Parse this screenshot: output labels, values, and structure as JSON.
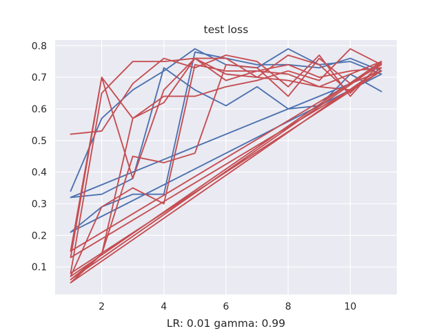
{
  "chart_data": {
    "type": "line",
    "title": "test loss",
    "xlabel": "LR: 0.01 gamma: 0.99",
    "ylabel": "",
    "xlim": [
      0.5,
      11.5
    ],
    "ylim": [
      0.013,
      0.818
    ],
    "xticks": [
      2,
      4,
      6,
      8,
      10
    ],
    "yticks": [
      0.1,
      0.2,
      0.3,
      0.4,
      0.5,
      0.6,
      0.7,
      0.8
    ],
    "grid": true,
    "background": "#eaeaf2",
    "series": [
      {
        "color": "#4c72b0",
        "x": [
          1,
          2,
          3,
          4,
          5,
          6,
          7,
          8,
          9,
          10,
          11,
          1,
          2,
          3,
          4,
          5,
          6,
          7,
          8,
          9,
          10,
          11,
          1,
          2,
          3,
          4,
          5,
          6,
          7,
          8,
          9,
          10,
          11
        ],
        "values": [
          0.34,
          0.57,
          0.66,
          0.72,
          0.79,
          0.74,
          0.73,
          0.79,
          0.74,
          0.75,
          0.71,
          0.21,
          0.29,
          0.33,
          0.33,
          0.78,
          0.76,
          0.74,
          0.74,
          0.73,
          0.76,
          0.72,
          0.32,
          0.33,
          0.38,
          0.73,
          0.66,
          0.61,
          0.67,
          0.6,
          0.61,
          0.71,
          0.655
        ]
      },
      {
        "color": "#c44e52",
        "x": [
          1,
          2,
          3,
          4,
          5,
          6,
          7,
          8,
          9,
          10,
          11,
          1,
          2,
          3,
          4,
          5,
          6,
          7,
          8,
          9,
          10,
          11,
          1,
          2,
          3,
          4,
          5,
          6,
          7,
          8,
          9,
          10,
          11,
          1,
          2,
          3,
          4,
          5,
          6,
          7,
          8,
          9,
          10,
          11,
          1,
          2,
          3,
          4,
          5,
          6,
          7,
          8,
          9,
          10,
          11,
          1,
          2,
          3,
          4,
          5,
          6,
          7,
          8,
          9,
          10,
          11,
          1,
          2,
          3,
          4,
          5,
          6,
          7,
          8,
          9,
          10,
          11
        ],
        "values": [
          0.52,
          0.53,
          0.68,
          0.76,
          0.73,
          0.77,
          0.75,
          0.67,
          0.77,
          0.64,
          0.75,
          0.07,
          0.29,
          0.35,
          0.3,
          0.74,
          0.72,
          0.72,
          0.74,
          0.7,
          0.72,
          0.73,
          0.05,
          0.14,
          0.57,
          0.64,
          0.64,
          0.67,
          0.69,
          0.72,
          0.69,
          0.79,
          0.74,
          0.15,
          0.7,
          0.38,
          0.66,
          0.76,
          0.69,
          0.72,
          0.71,
          0.67,
          0.66,
          0.72,
          0.08,
          0.65,
          0.75,
          0.75,
          0.76,
          0.71,
          0.7,
          0.77,
          0.74,
          0.65,
          0.745,
          0.06,
          0.14,
          0.45,
          0.43,
          0.46,
          0.74,
          0.73,
          0.64,
          0.76,
          0.68,
          0.72,
          0.13,
          0.7,
          0.57,
          0.62,
          0.76,
          0.76,
          0.7,
          0.69,
          0.67,
          0.71,
          0.75
        ]
      }
    ]
  }
}
